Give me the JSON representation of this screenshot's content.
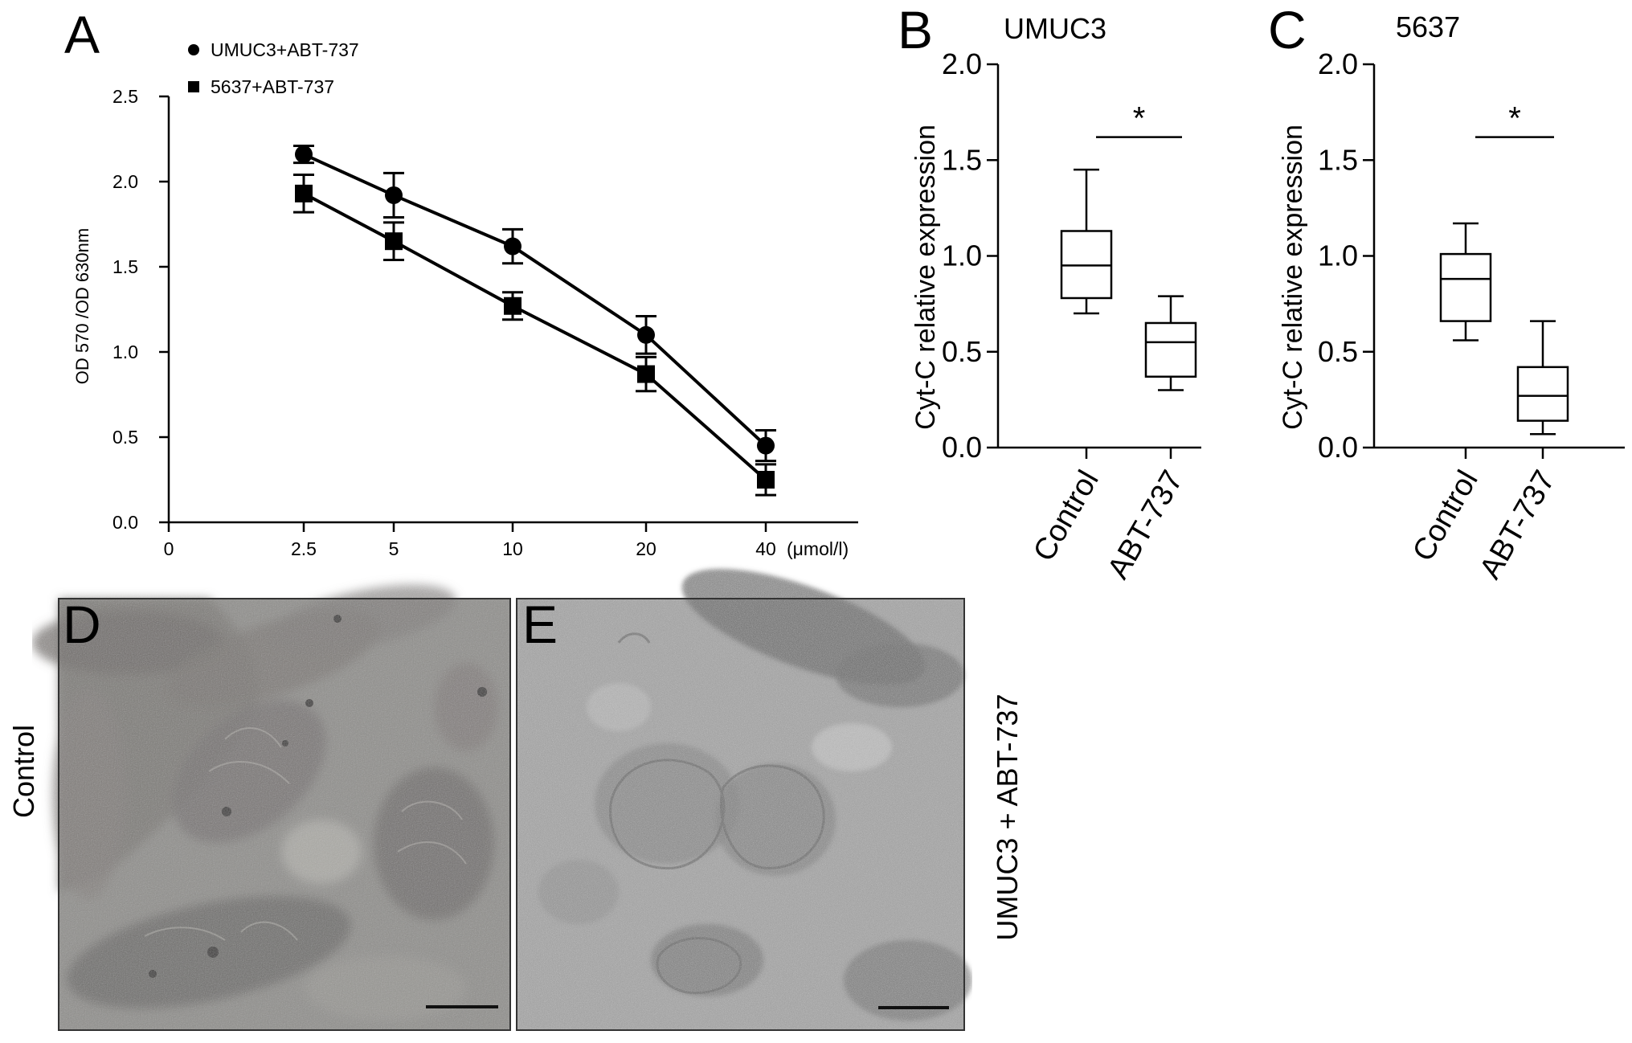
{
  "panels": {
    "A": {
      "letter": "A",
      "chart_data": {
        "type": "line",
        "x_categories": [
          "0",
          "2.5",
          "5",
          "10",
          "20",
          "40"
        ],
        "x_unit_label": "(μmol/l)",
        "ylabel": "OD 570 /OD 630nm",
        "ylim": [
          0,
          2.5
        ],
        "yticks": [
          "0.0",
          "0.5",
          "1.0",
          "1.5",
          "2.0",
          "2.5"
        ],
        "series": [
          {
            "name": "UMUC3+ABT-737",
            "marker": "circle",
            "x": [
              "2.5",
              "5",
              "10",
              "20",
              "40"
            ],
            "values": [
              2.16,
              1.92,
              1.62,
              1.1,
              0.45
            ],
            "errors": [
              0.05,
              0.13,
              0.1,
              0.11,
              0.09
            ]
          },
          {
            "name": "5637+ABT-737",
            "marker": "square",
            "x": [
              "2.5",
              "5",
              "10",
              "20",
              "40"
            ],
            "values": [
              1.93,
              1.65,
              1.27,
              0.87,
              0.25
            ],
            "errors": [
              0.11,
              0.11,
              0.08,
              0.1,
              0.09
            ]
          }
        ],
        "legend_position": "top-left",
        "grid": false
      }
    },
    "B": {
      "letter": "B",
      "chart_data": {
        "type": "box",
        "subtitle": "UMUC3",
        "categories": [
          "Control",
          "ABT-737"
        ],
        "ylabel": "Cyt-C relative expression",
        "ylim": [
          0,
          2.0
        ],
        "yticks": [
          "0.0",
          "0.5",
          "1.0",
          "1.5",
          "2.0"
        ],
        "boxes": [
          {
            "min": 0.7,
            "q1": 0.78,
            "median": 0.95,
            "q3": 1.13,
            "max": 1.45
          },
          {
            "min": 0.3,
            "q1": 0.37,
            "median": 0.55,
            "q3": 0.65,
            "max": 0.79
          }
        ],
        "significance": "*",
        "grid": false
      }
    },
    "C": {
      "letter": "C",
      "chart_data": {
        "type": "box",
        "subtitle": "5637",
        "categories": [
          "Control",
          "ABT-737"
        ],
        "ylabel": "Cyt-C relative expression",
        "ylim": [
          0,
          2.0
        ],
        "yticks": [
          "0.0",
          "0.5",
          "1.0",
          "1.5",
          "2.0"
        ],
        "boxes": [
          {
            "min": 0.56,
            "q1": 0.66,
            "median": 0.88,
            "q3": 1.01,
            "max": 1.17
          },
          {
            "min": 0.07,
            "q1": 0.14,
            "median": 0.27,
            "q3": 0.42,
            "max": 0.66
          }
        ],
        "significance": "*",
        "grid": false
      }
    },
    "D": {
      "letter": "D",
      "side_label": "Control"
    },
    "E": {
      "letter": "E",
      "side_label": "UMUC3 + ABT-737"
    }
  },
  "colors": {
    "ink": "#000000",
    "micrograph_d_base": "#8f8e8b",
    "micrograph_e_base": "#a3a3a3"
  }
}
